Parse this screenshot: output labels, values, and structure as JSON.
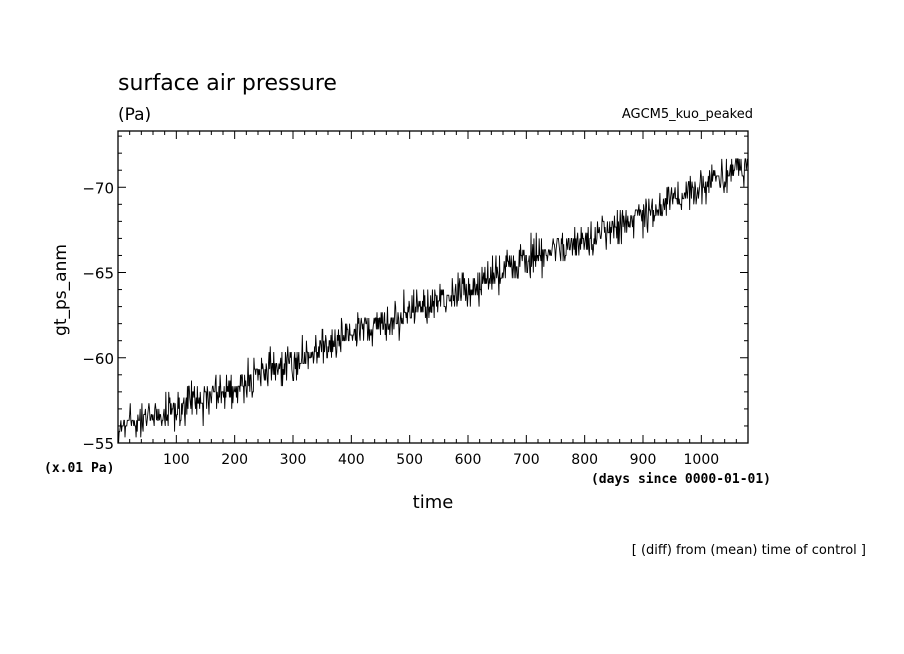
{
  "chart_data": {
    "type": "line",
    "title": "surface air pressure",
    "units": "(Pa)",
    "model": "AGCM5_kuo_peaked",
    "xlabel": "time",
    "x_units": "(days since 0000-01-01)",
    "ylabel": "gt_ps_anm",
    "y_units": "(x.01 Pa)",
    "note": "[ (diff) from (mean) time of control ]",
    "xlim": [
      0,
      1080
    ],
    "ylim": [
      -55,
      -73.3
    ],
    "y_ticks": [
      -55,
      -60,
      -65,
      -70
    ],
    "x_ticks": [
      100,
      200,
      300,
      400,
      500,
      600,
      700,
      800,
      900,
      1000
    ],
    "series": [
      {
        "trend_points": [
          {
            "x": 0,
            "y": -56.0
          },
          {
            "x": 100,
            "y": -57.0
          },
          {
            "x": 200,
            "y": -58.3
          },
          {
            "x": 300,
            "y": -59.7
          },
          {
            "x": 400,
            "y": -61.4
          },
          {
            "x": 500,
            "y": -62.6
          },
          {
            "x": 600,
            "y": -64.0
          },
          {
            "x": 700,
            "y": -65.8
          },
          {
            "x": 800,
            "y": -67.0
          },
          {
            "x": 900,
            "y": -68.5
          },
          {
            "x": 1000,
            "y": -70.0
          },
          {
            "x": 1080,
            "y": -71.3
          }
        ],
        "noise_amplitude": 1.0,
        "sample_step_days": 1
      }
    ]
  }
}
